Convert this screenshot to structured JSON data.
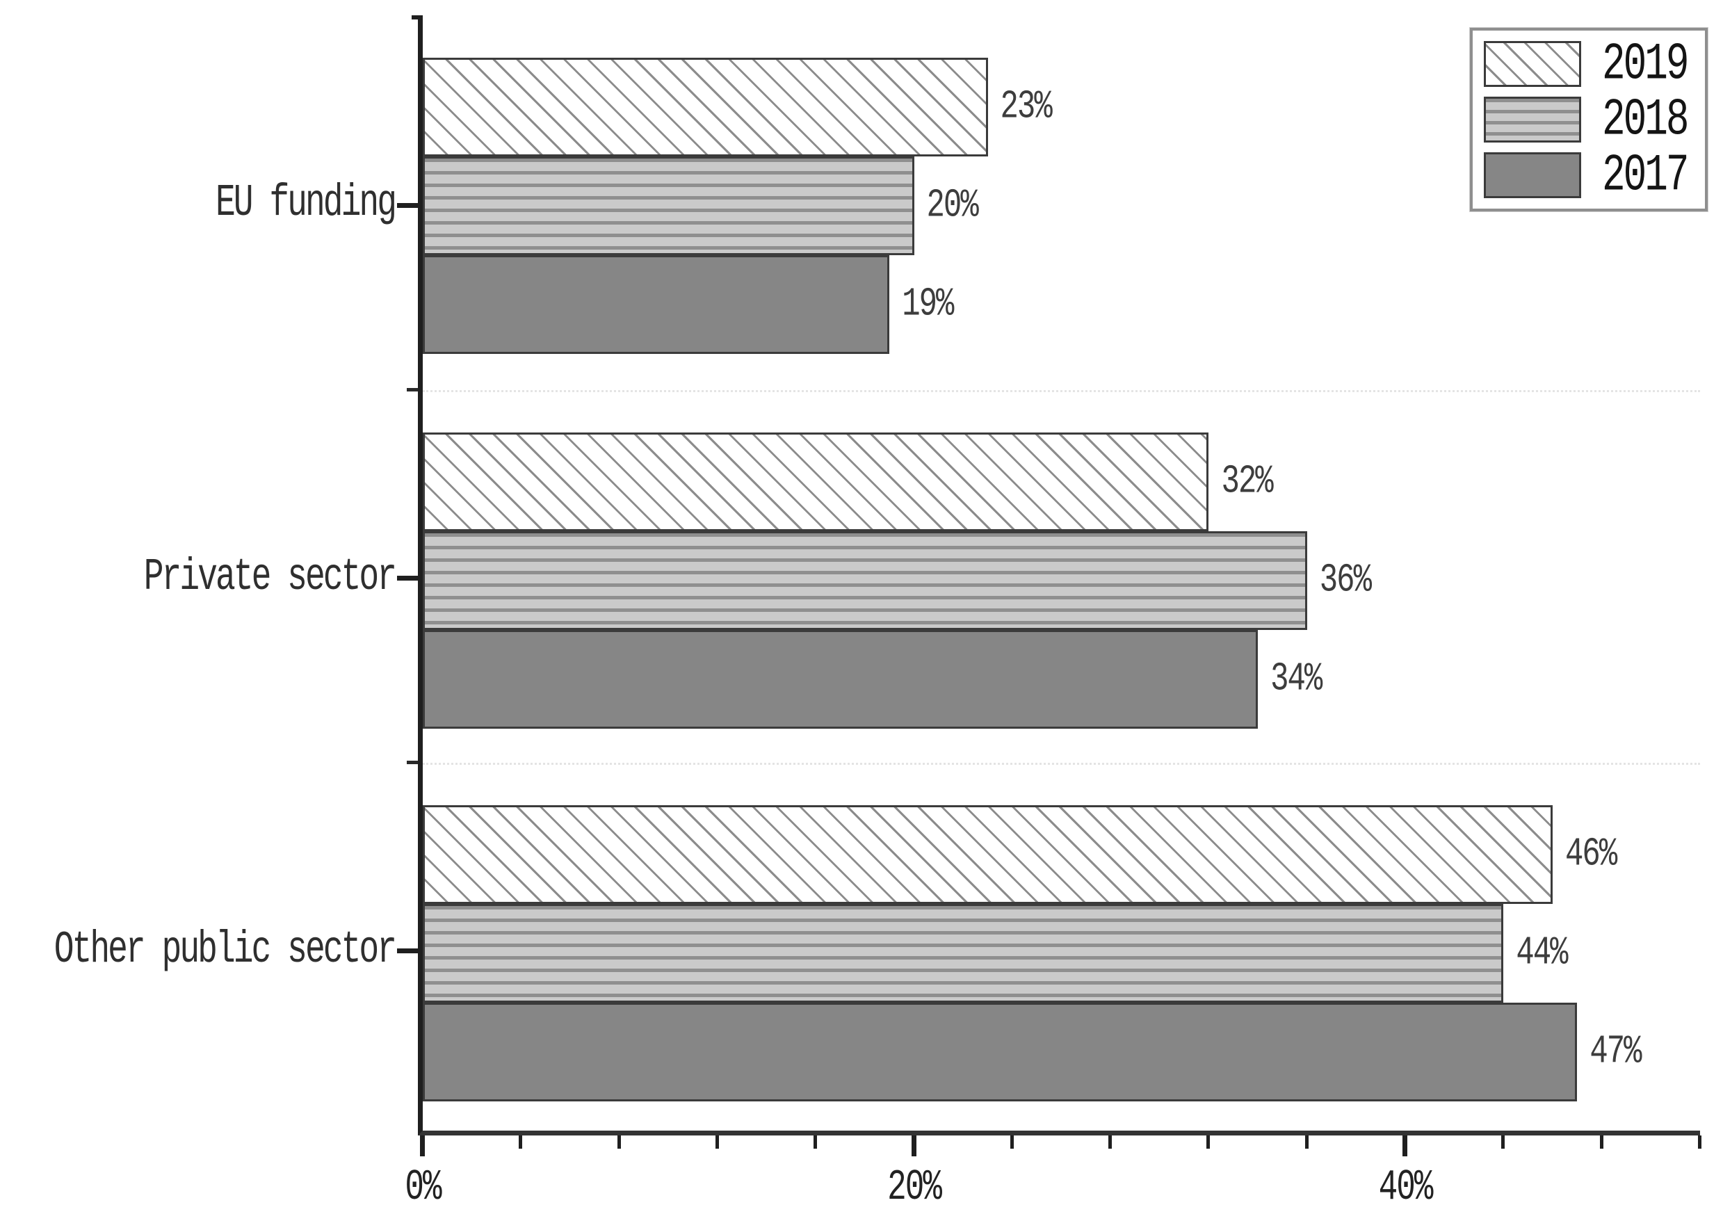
{
  "chart_data": {
    "type": "bar",
    "orientation": "horizontal",
    "title": "",
    "xlabel": "",
    "ylabel": "",
    "categories": [
      "EU funding",
      "Private sector",
      "Other public sector"
    ],
    "series": [
      {
        "name": "2019",
        "pattern": "diagonal-hatch",
        "values": [
          23,
          32,
          46
        ]
      },
      {
        "name": "2018",
        "pattern": "horizontal-stripes",
        "values": [
          20,
          36,
          44
        ]
      },
      {
        "name": "2017",
        "pattern": "solid-gray",
        "values": [
          19,
          34,
          47
        ]
      }
    ],
    "bar_value_labels": [
      [
        "23%",
        "20%",
        "19%"
      ],
      [
        "32%",
        "36%",
        "34%"
      ],
      [
        "46%",
        "44%",
        "47%"
      ]
    ],
    "x_axis": {
      "tick_labels": [
        "0%",
        "20%",
        "40%"
      ],
      "tick_values": [
        0,
        20,
        40
      ],
      "minor_tick_step": 4,
      "range": [
        0,
        52
      ],
      "unit": "percent"
    },
    "y_axis": {
      "separator_gridlines": "dotted",
      "gridline_positions_between_groups": true
    },
    "legend": {
      "position": "top-right",
      "entries": [
        "2019",
        "2018",
        "2017"
      ]
    },
    "grid": "off-except-dotted-separators",
    "colors": {
      "background": "#ffffff",
      "solid_bar": "#868686",
      "stripe_dark": "#8f8f8f",
      "stripe_light": "#cacaca",
      "hatch_line": "#8c8c8c",
      "bar_border": "#3b3b3b",
      "axis_spine": "#1f1f1f",
      "separator_dotted": "#e4e4e4",
      "label_text": "#2f2f2f"
    }
  }
}
